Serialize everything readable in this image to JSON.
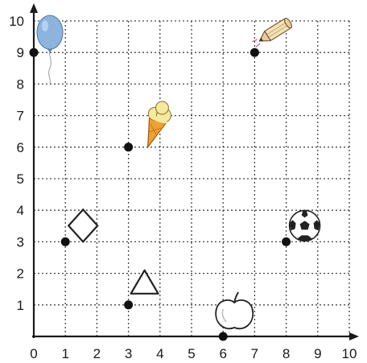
{
  "chart_data": {
    "type": "scatter",
    "title": "",
    "xlabel": "",
    "ylabel": "",
    "xlim": [
      0,
      10
    ],
    "ylim": [
      0,
      10
    ],
    "grid": true,
    "grid_style": "dotted",
    "x_tick_labels": [
      "0",
      "1",
      "2",
      "3",
      "4",
      "5",
      "6",
      "7",
      "8",
      "9",
      "10"
    ],
    "y_tick_labels": [
      "1",
      "2",
      "3",
      "4",
      "5",
      "6",
      "7",
      "8",
      "9",
      "10"
    ],
    "points": [
      {
        "x": 0,
        "y": 9,
        "icon": "balloon-icon"
      },
      {
        "x": 7,
        "y": 9,
        "icon": "pencil-icon"
      },
      {
        "x": 3,
        "y": 6,
        "icon": "ice-cream-icon"
      },
      {
        "x": 1,
        "y": 3,
        "icon": "diamond-icon"
      },
      {
        "x": 8,
        "y": 3,
        "icon": "soccer-ball-icon"
      },
      {
        "x": 3,
        "y": 1,
        "icon": "triangle-icon"
      },
      {
        "x": 6,
        "y": 0,
        "icon": "apple-icon"
      }
    ],
    "colors": {
      "axis": "#1a1a1a",
      "grid": "#444444",
      "point": "#111111",
      "balloon": "#8db4dc",
      "ice_cream_cone": "#f0a030",
      "ice_cream_scoop": "#f6eaa0",
      "pencil": "#f2e2b8"
    }
  }
}
